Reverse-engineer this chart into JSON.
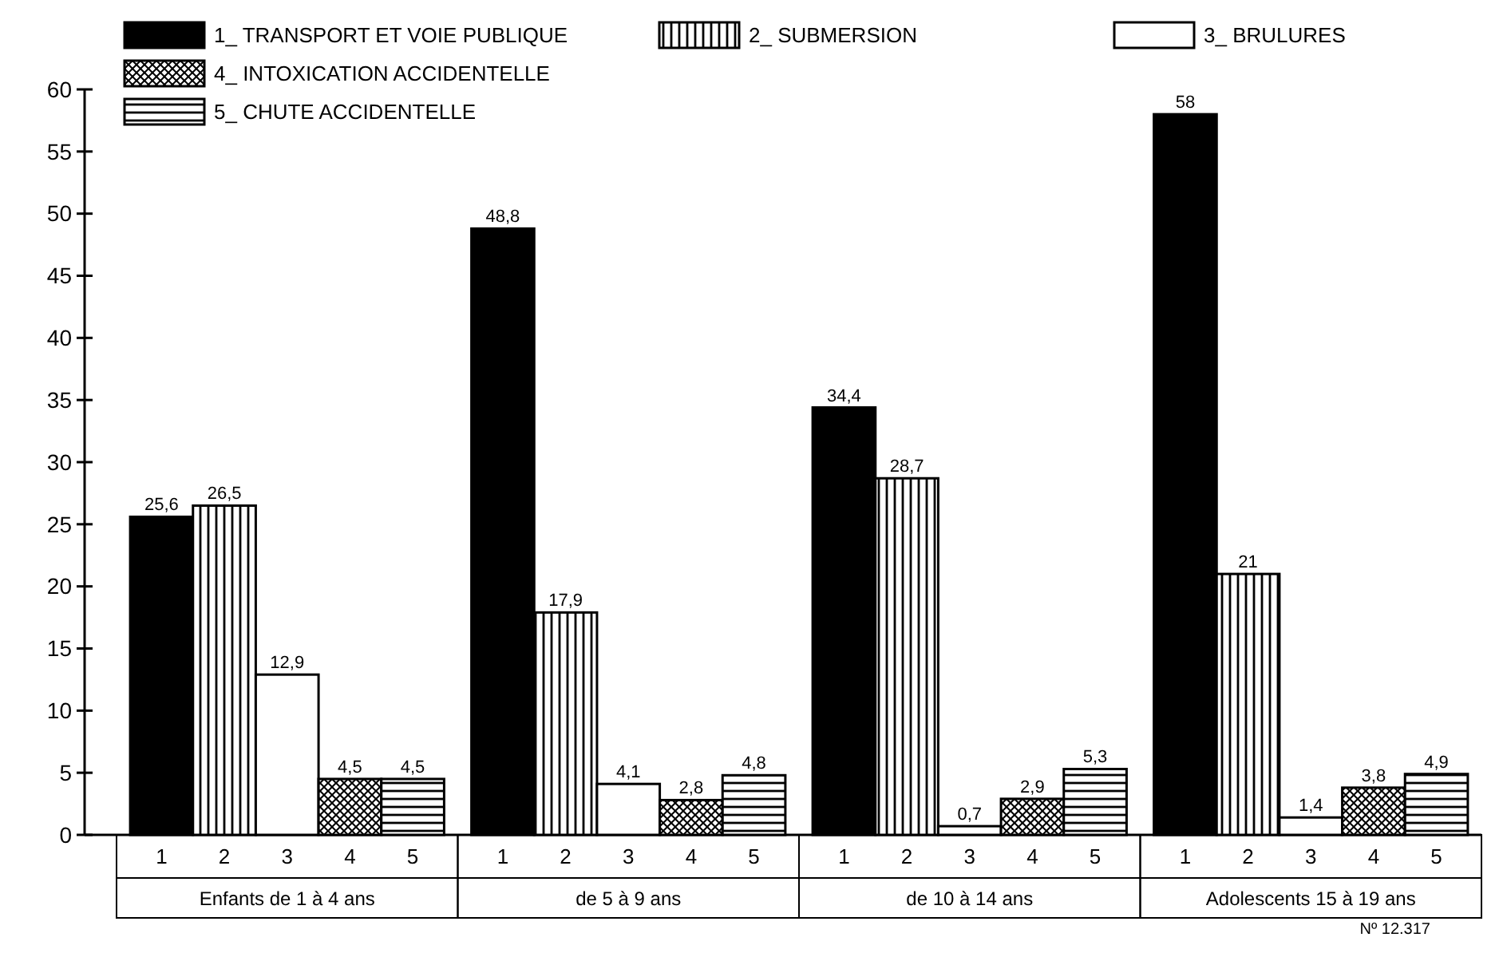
{
  "chart_data": {
    "type": "bar",
    "categories": [
      "Enfants de 1 à 4 ans",
      "de 5 à 9 ans",
      "de 10 à 14 ans",
      "Adolescents 15 à 19 ans"
    ],
    "series": [
      {
        "name": "1_ TRANSPORT ET VOIE PUBLIQUE",
        "color": "#000000",
        "values": [
          25.6,
          48.8,
          34.4,
          58
        ],
        "value_labels": [
          "25,6",
          "48,8",
          "34,4",
          "58"
        ]
      },
      {
        "name": "2_ SUBMERSION",
        "color": "#000000",
        "values": [
          26.5,
          17.9,
          28.7,
          21
        ],
        "value_labels": [
          "26,5",
          "17,9",
          "28,7",
          "21"
        ]
      },
      {
        "name": "3_ BRULURES",
        "color": "#ffffff",
        "values": [
          12.9,
          4.1,
          0.7,
          1.4
        ],
        "value_labels": [
          "12,9",
          "4,1",
          "0,7",
          "1,4"
        ]
      },
      {
        "name": "4_ INTOXICATION ACCIDENTELLE",
        "color": "#000000",
        "values": [
          4.5,
          2.8,
          2.9,
          3.8
        ],
        "value_labels": [
          "4,5",
          "2,8",
          "2,9",
          "3,8"
        ]
      },
      {
        "name": "5_ CHUTE ACCIDENTELLE",
        "color": "#000000",
        "values": [
          4.5,
          4.8,
          5.3,
          4.9
        ],
        "value_labels": [
          "4,5",
          "4,8",
          "5,3",
          "4,9"
        ]
      }
    ],
    "ylim": [
      0,
      60
    ],
    "yticks": [
      0,
      5,
      10,
      15,
      20,
      25,
      30,
      35,
      40,
      45,
      50,
      55,
      60
    ],
    "grid": false,
    "legend": "top",
    "annotations": [
      "1",
      "2",
      "3",
      "4",
      "5",
      "Nº 12.317"
    ]
  }
}
